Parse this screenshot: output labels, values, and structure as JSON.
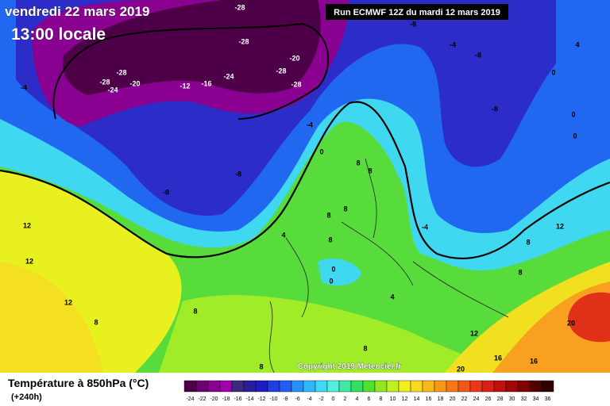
{
  "header": {
    "date": "vendredi 22 mars 2019",
    "time": "13:00 locale",
    "run": "Run ECMWF 12Z du mardi 12 mars 2019"
  },
  "map": {
    "type": "map",
    "contour_labels": [
      -28,
      -28,
      -8,
      -4,
      -8,
      4,
      -20,
      -28,
      -28,
      -24,
      -20,
      -12,
      -16,
      -24,
      -28,
      -28,
      -4,
      0,
      -4,
      -8,
      0,
      0,
      0,
      8,
      8,
      -8,
      -8,
      8,
      8,
      12,
      12,
      -4,
      4,
      8,
      8,
      12,
      0,
      0,
      8,
      4,
      12,
      8,
      8,
      20,
      12,
      16,
      20,
      16,
      8,
      8
    ]
  },
  "legend": {
    "title": "Température à 850hPa (°C)",
    "lead": "(+240h)",
    "values": [
      -24,
      -22,
      -20,
      -18,
      -16,
      -14,
      -12,
      -10,
      -8,
      -6,
      -4,
      -2,
      0,
      2,
      4,
      6,
      8,
      10,
      12,
      14,
      16,
      18,
      20,
      22,
      24,
      26,
      28,
      30,
      32,
      34,
      36
    ],
    "colors": [
      "#4d0048",
      "#6d0070",
      "#8a0090",
      "#a000a8",
      "#3c2a80",
      "#281e9c",
      "#1c1cc0",
      "#1e3ee0",
      "#2060f0",
      "#2890f8",
      "#30b8ff",
      "#40d8f8",
      "#50f0e0",
      "#40e8a0",
      "#30e060",
      "#50e030",
      "#90e820",
      "#c0f020",
      "#f0f020",
      "#f8d820",
      "#f8b818",
      "#f89818",
      "#f87818",
      "#f05818",
      "#e83818",
      "#d82018",
      "#c01010",
      "#a00808",
      "#800000",
      "#500000",
      "#300000"
    ]
  },
  "copyright": "Copyright 2019 Meteociel.fr"
}
